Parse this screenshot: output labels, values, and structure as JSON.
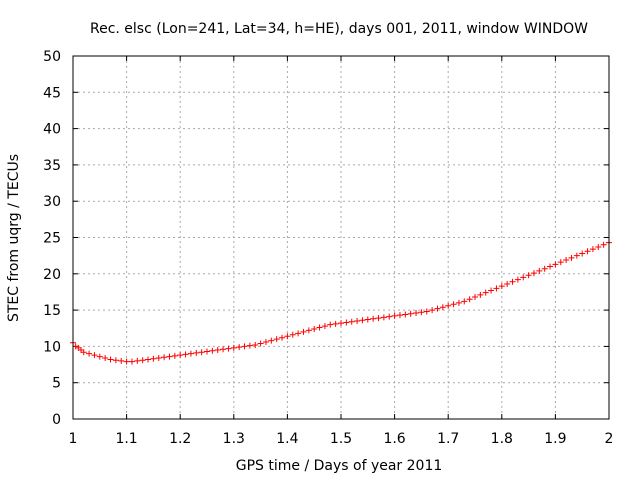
{
  "chart_data": {
    "type": "scatter",
    "title": "Rec. elsc (Lon=241, Lat=34, h=HE), days 001, 2011, window WINDOW",
    "xlabel": "GPS time / Days of year 2011",
    "ylabel": "STEC from uqrg / TECUs",
    "xlim": [
      1,
      2
    ],
    "ylim": [
      0,
      50
    ],
    "x_ticks": [
      "1",
      "1.1",
      "1.2",
      "1.3",
      "1.4",
      "1.5",
      "1.6",
      "1.7",
      "1.8",
      "1.9",
      "2"
    ],
    "y_ticks": [
      "0",
      "5",
      "10",
      "15",
      "20",
      "25",
      "30",
      "35",
      "40",
      "45",
      "50"
    ],
    "grid": true,
    "marker": "+",
    "color": "#ff0000",
    "series": [
      {
        "name": "STEC",
        "x": [
          1.0,
          1.005,
          1.01,
          1.015,
          1.02,
          1.03,
          1.04,
          1.05,
          1.06,
          1.07,
          1.08,
          1.09,
          1.1,
          1.11,
          1.12,
          1.13,
          1.14,
          1.15,
          1.16,
          1.17,
          1.18,
          1.19,
          1.2,
          1.21,
          1.22,
          1.23,
          1.24,
          1.25,
          1.26,
          1.27,
          1.28,
          1.29,
          1.3,
          1.31,
          1.32,
          1.33,
          1.34,
          1.35,
          1.36,
          1.37,
          1.38,
          1.39,
          1.4,
          1.41,
          1.42,
          1.43,
          1.44,
          1.45,
          1.46,
          1.47,
          1.48,
          1.49,
          1.5,
          1.51,
          1.52,
          1.53,
          1.54,
          1.55,
          1.56,
          1.57,
          1.58,
          1.59,
          1.6,
          1.61,
          1.62,
          1.63,
          1.64,
          1.65,
          1.66,
          1.67,
          1.68,
          1.69,
          1.7,
          1.71,
          1.72,
          1.73,
          1.74,
          1.75,
          1.76,
          1.77,
          1.78,
          1.79,
          1.8,
          1.81,
          1.82,
          1.83,
          1.84,
          1.85,
          1.86,
          1.87,
          1.88,
          1.89,
          1.9,
          1.91,
          1.92,
          1.93,
          1.94,
          1.95,
          1.96,
          1.97,
          1.98,
          1.99,
          2.0
        ],
        "y": [
          10.5,
          10.0,
          9.8,
          9.5,
          9.2,
          9.0,
          8.8,
          8.6,
          8.4,
          8.2,
          8.1,
          8.0,
          7.9,
          7.9,
          8.0,
          8.1,
          8.2,
          8.3,
          8.4,
          8.5,
          8.6,
          8.7,
          8.8,
          8.9,
          9.0,
          9.1,
          9.2,
          9.3,
          9.4,
          9.5,
          9.6,
          9.7,
          9.8,
          9.9,
          10.0,
          10.1,
          10.2,
          10.4,
          10.6,
          10.8,
          11.0,
          11.2,
          11.4,
          11.6,
          11.8,
          12.0,
          12.2,
          12.4,
          12.6,
          12.8,
          13.0,
          13.1,
          13.2,
          13.3,
          13.4,
          13.5,
          13.6,
          13.7,
          13.8,
          13.9,
          14.0,
          14.1,
          14.2,
          14.3,
          14.4,
          14.5,
          14.6,
          14.7,
          14.8,
          15.0,
          15.2,
          15.4,
          15.6,
          15.8,
          16.0,
          16.2,
          16.5,
          16.8,
          17.1,
          17.4,
          17.7,
          18.0,
          18.3,
          18.6,
          18.9,
          19.2,
          19.5,
          19.8,
          20.1,
          20.4,
          20.7,
          21.0,
          21.3,
          21.6,
          21.9,
          22.2,
          22.5,
          22.8,
          23.1,
          23.4,
          23.7,
          24.0,
          24.3
        ]
      }
    ]
  }
}
